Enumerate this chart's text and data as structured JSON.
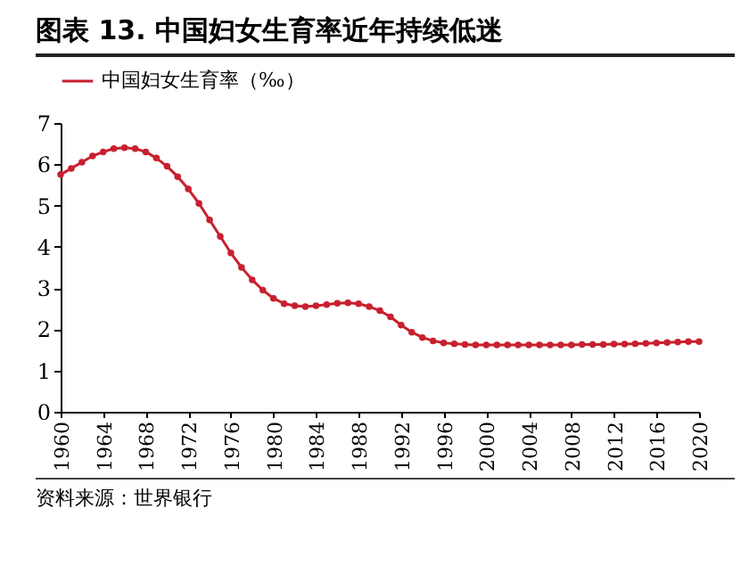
{
  "chart_data": {
    "type": "line",
    "title": "图表 13. 中国妇女生育率近年持续低迷",
    "annotations": [
      "资料来源：世界银行"
    ],
    "x": [
      1960,
      1961,
      1962,
      1963,
      1964,
      1965,
      1966,
      1967,
      1968,
      1969,
      1970,
      1971,
      1972,
      1973,
      1974,
      1975,
      1976,
      1977,
      1978,
      1979,
      1980,
      1981,
      1982,
      1983,
      1984,
      1985,
      1986,
      1987,
      1988,
      1989,
      1990,
      1991,
      1992,
      1993,
      1994,
      1995,
      1996,
      1997,
      1998,
      1999,
      2000,
      2001,
      2002,
      2003,
      2004,
      2005,
      2006,
      2007,
      2008,
      2009,
      2010,
      2011,
      2012,
      2013,
      2014,
      2015,
      2016,
      2017,
      2018,
      2019,
      2020
    ],
    "series": [
      {
        "name": "中国妇女生育率（‰）",
        "color": "#c8202f",
        "values": [
          5.75,
          5.9,
          6.05,
          6.2,
          6.3,
          6.38,
          6.4,
          6.38,
          6.3,
          6.15,
          5.95,
          5.7,
          5.4,
          5.05,
          4.65,
          4.25,
          3.85,
          3.5,
          3.2,
          2.95,
          2.75,
          2.62,
          2.57,
          2.55,
          2.57,
          2.6,
          2.63,
          2.64,
          2.62,
          2.55,
          2.45,
          2.3,
          2.1,
          1.93,
          1.8,
          1.72,
          1.67,
          1.65,
          1.63,
          1.62,
          1.62,
          1.62,
          1.62,
          1.62,
          1.62,
          1.62,
          1.62,
          1.62,
          1.62,
          1.63,
          1.63,
          1.63,
          1.64,
          1.64,
          1.65,
          1.66,
          1.67,
          1.68,
          1.69,
          1.7,
          1.7
        ]
      }
    ],
    "xlim": [
      1960,
      2020
    ],
    "xticks": [
      1960,
      1964,
      1968,
      1972,
      1976,
      1980,
      1984,
      1988,
      1992,
      1996,
      2000,
      2004,
      2008,
      2012,
      2016,
      2020
    ],
    "ylim": [
      0,
      7
    ],
    "yticks": [
      0,
      1,
      2,
      3,
      4,
      5,
      6,
      7
    ],
    "grid": false,
    "legend": "top",
    "marker": "circle",
    "line_style": "solid"
  }
}
